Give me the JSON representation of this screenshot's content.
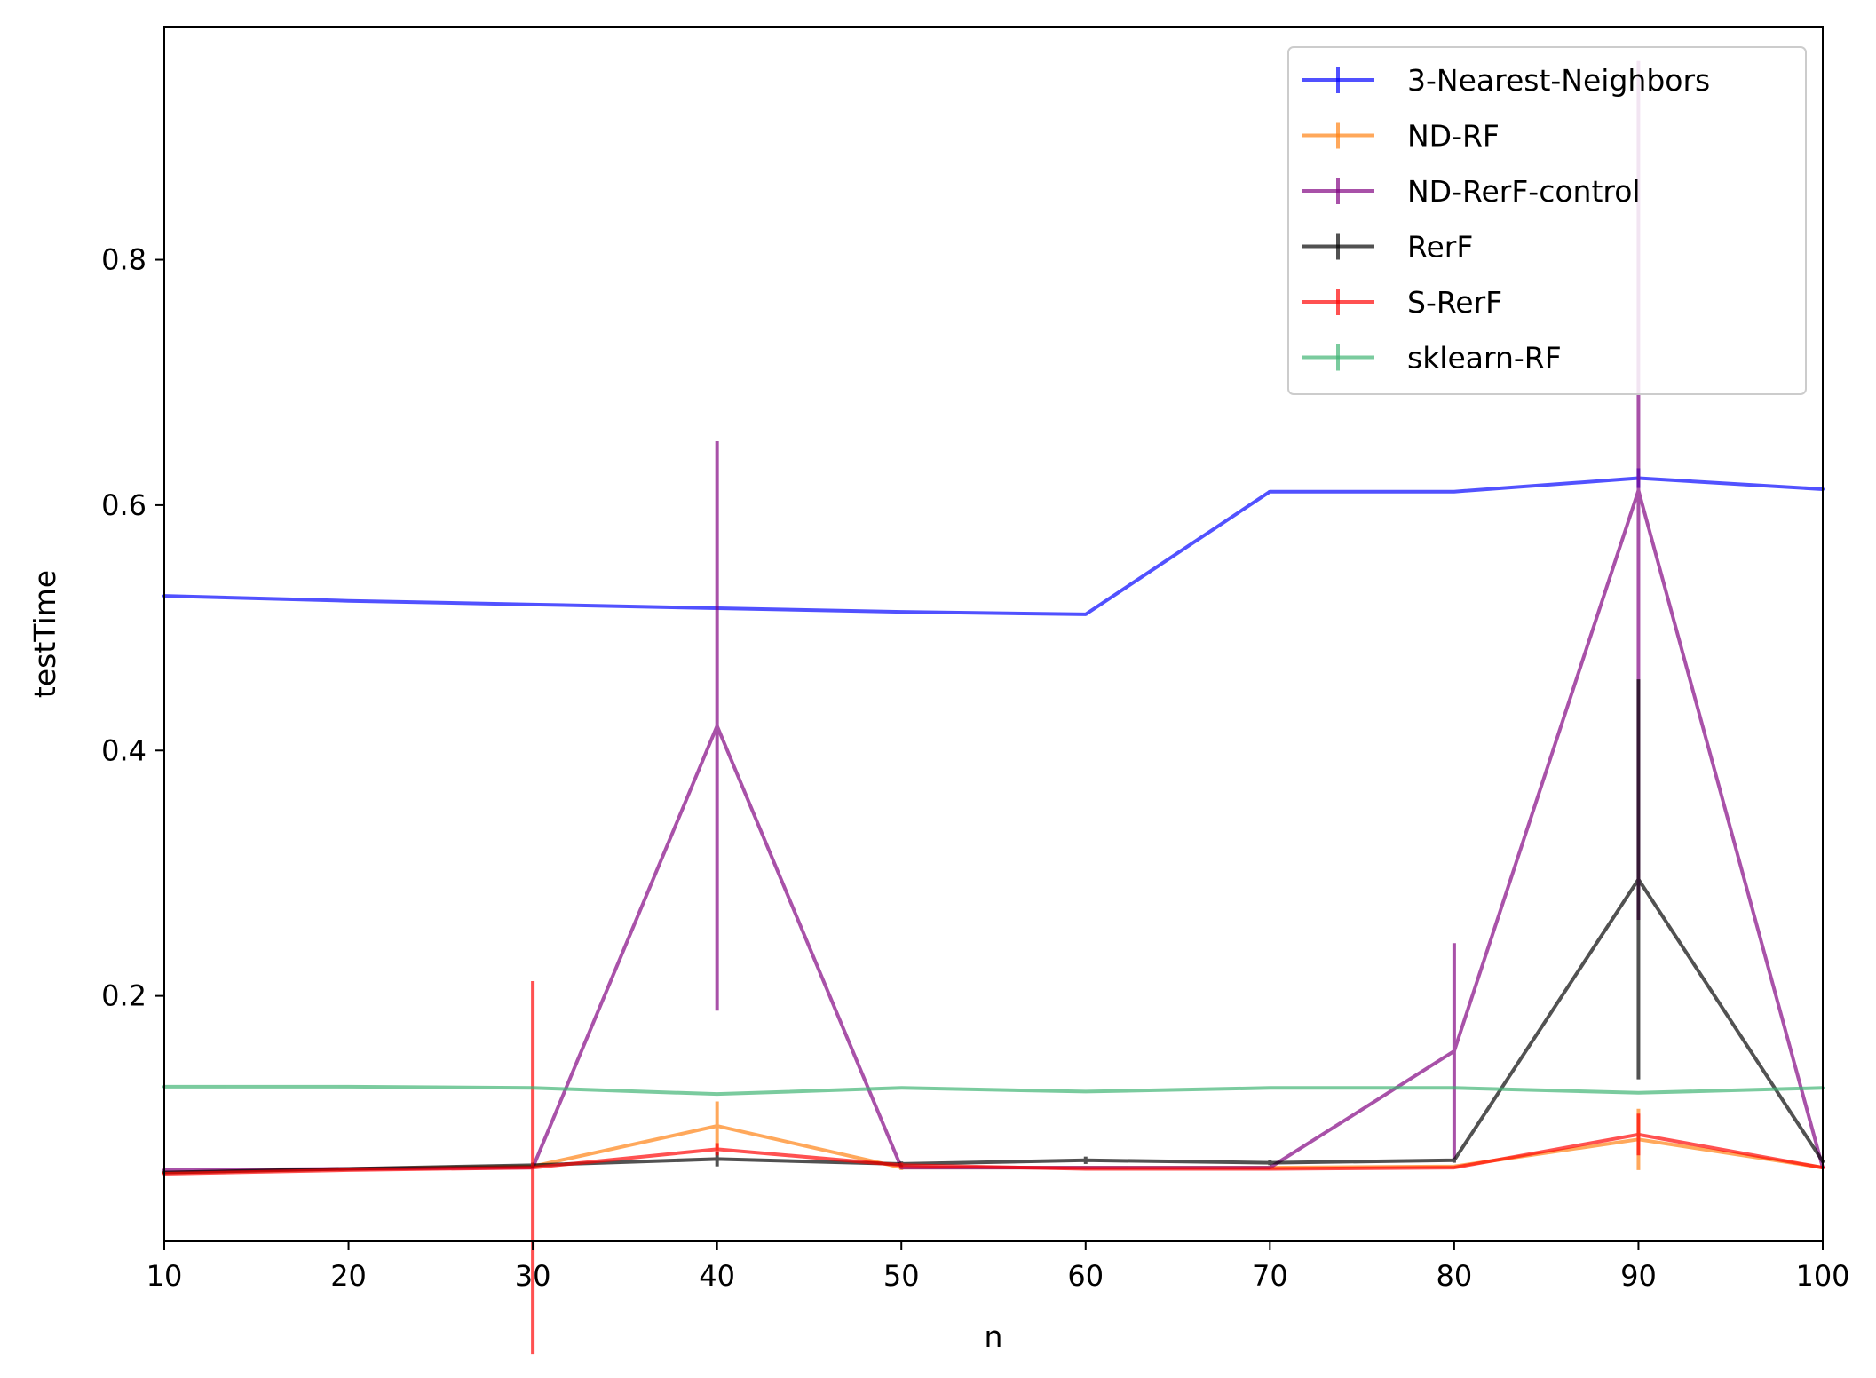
{
  "chart_data": {
    "type": "line",
    "title": "",
    "xlabel": "n",
    "ylabel": "testTime",
    "xlim": [
      10,
      100
    ],
    "ylim": [
      0,
      0.99
    ],
    "x_ticks": [
      10,
      20,
      30,
      40,
      50,
      60,
      70,
      80,
      90,
      100
    ],
    "x_tick_labels": [
      "10",
      "20",
      "30",
      "40",
      "50",
      "60",
      "70",
      "80",
      "90",
      "100"
    ],
    "y_ticks": [
      0.2,
      0.4,
      0.6,
      0.8
    ],
    "y_tick_labels": [
      "0.2",
      "0.4",
      "0.6",
      "0.8"
    ],
    "grid": false,
    "legend_position": "top-right",
    "x": [
      10,
      20,
      30,
      40,
      50,
      60,
      70,
      80,
      90,
      100
    ],
    "series": [
      {
        "name": "3-Nearest-Neighbors",
        "color": "#0000ff",
        "values": [
          0.526,
          0.522,
          0.519,
          0.516,
          0.513,
          0.511,
          0.611,
          0.611,
          0.622,
          0.613
        ],
        "errors": [
          0.001,
          0.001,
          0.001,
          0.001,
          0.001,
          0.001,
          0.001,
          0.001,
          0.008,
          0.001
        ]
      },
      {
        "name": "ND-RF",
        "color": "#ff7f0e",
        "values": [
          0.056,
          0.059,
          0.061,
          0.094,
          0.06,
          0.06,
          0.06,
          0.061,
          0.083,
          0.06
        ],
        "errors": [
          0.001,
          0.001,
          0.001,
          0.02,
          0.002,
          0.001,
          0.001,
          0.001,
          0.025,
          0.001
        ]
      },
      {
        "name": "ND-RerF-control",
        "color": "#800080",
        "values": [
          0.058,
          0.059,
          0.06,
          0.42,
          0.06,
          0.06,
          0.06,
          0.155,
          0.612,
          0.06
        ],
        "errors": [
          0.001,
          0.001,
          0.001,
          0.232,
          0.001,
          0.001,
          0.001,
          0.088,
          0.35,
          0.001
        ]
      },
      {
        "name": "RerF",
        "color": "#000000",
        "values": [
          0.056,
          0.059,
          0.062,
          0.067,
          0.063,
          0.066,
          0.064,
          0.066,
          0.295,
          0.065
        ],
        "errors": [
          0.001,
          0.001,
          0.002,
          0.006,
          0.002,
          0.003,
          0.002,
          0.002,
          0.163,
          0.001
        ]
      },
      {
        "name": "S-RerF",
        "color": "#ff0000",
        "values": [
          0.055,
          0.058,
          0.06,
          0.075,
          0.062,
          0.059,
          0.059,
          0.06,
          0.087,
          0.06
        ],
        "errors": [
          0.001,
          0.001,
          0.152,
          0.005,
          0.002,
          0.001,
          0.001,
          0.001,
          0.017,
          0.001
        ]
      },
      {
        "name": "sklearn-RF",
        "color": "#3cb371",
        "values": [
          0.126,
          0.126,
          0.125,
          0.12,
          0.125,
          0.122,
          0.125,
          0.125,
          0.121,
          0.125
        ],
        "errors": [
          0.001,
          0.001,
          0.001,
          0.001,
          0.001,
          0.001,
          0.001,
          0.001,
          0.001,
          0.001
        ]
      }
    ]
  }
}
